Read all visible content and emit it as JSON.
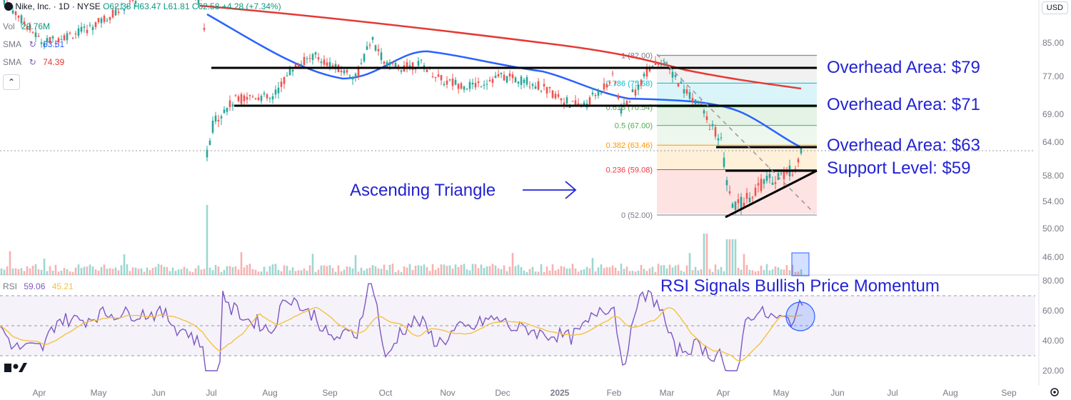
{
  "header": {
    "title": "Nike, Inc. · 1D · NYSE",
    "ohlc": "O62.38 H63.47 L61.81 C62.58 +4.28 (+7.34%)",
    "currency": "USD"
  },
  "legend": {
    "vol_label": "Vol",
    "vol_value": "29.76M",
    "sma1_label": "SMA",
    "sma1_value": "63.51",
    "sma2_label": "SMA",
    "sma2_value": "74.39",
    "rsi_label": "RSI",
    "rsi_value": "59.06",
    "rsi_ma_value": "45.21"
  },
  "colors": {
    "up": "#26a69a",
    "down": "#ef5350",
    "sma50": "#2962ff",
    "sma200": "#e53935",
    "annotation": "#2323d4",
    "rsi": "#7e57c2",
    "rsi_ma": "#f5c242"
  },
  "annotations": {
    "overhead1": "Overhead Area: $79",
    "overhead2": "Overhead Area: $71",
    "overhead3": "Overhead Area: $63",
    "support": "Support Level: $59",
    "triangle": "Ascending Triangle",
    "rsi": "RSI Signals Bullish Price Momentum"
  },
  "chart_data": [
    {
      "type": "line",
      "name": "price",
      "y_ticks": [
        "85.00",
        "77.00",
        "69.00",
        "64.00",
        "58.00",
        "54.00",
        "50.00",
        "46.00"
      ],
      "x_ticks": [
        "Apr",
        "May",
        "Jun",
        "Jul",
        "Aug",
        "Sep",
        "Oct",
        "Nov",
        "Dec",
        "2025",
        "Feb",
        "Mar",
        "Apr",
        "May",
        "Jun",
        "Jul",
        "Aug",
        "Sep"
      ],
      "fib_levels": [
        {
          "label": "1 (82.00)",
          "value": 82.0
        },
        {
          "label": "0.786 (75.58)",
          "value": 75.58
        },
        {
          "label": "0.618 (70.54)",
          "value": 70.54
        },
        {
          "label": "0.5 (67.00)",
          "value": 67.0
        },
        {
          "label": "0.382 (63.46)",
          "value": 63.46
        },
        {
          "label": "0.236 (59.08)",
          "value": 59.08
        },
        {
          "label": "0 (52.00)",
          "value": 52.0
        }
      ],
      "levels": [
        79,
        71,
        63,
        59
      ]
    },
    {
      "type": "line",
      "name": "rsi",
      "y_ticks": [
        "80.00",
        "60.00",
        "40.00",
        "20.00"
      ],
      "bands": [
        70,
        50,
        30
      ]
    }
  ]
}
